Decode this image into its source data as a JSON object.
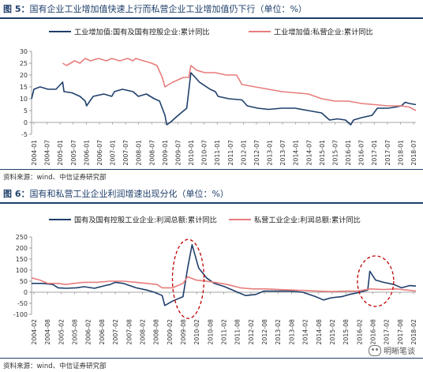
{
  "figure5": {
    "label": "图 5：",
    "title": "国有企业工业增加值快速上行而私营企业工业增加值仍下行（单位：%）",
    "source": "资料来源：wind、中信证券研究部"
  },
  "figure6": {
    "label": "图 6：",
    "title": "国有和私营工业企业利润增速出现分化（单位：%）",
    "source": "资料来源：wind、中信证券研究部"
  },
  "watermark": "明晰笔谈",
  "colors": {
    "series_state": "#1f3f6b",
    "series_private": "#e87d7d",
    "ellipse": "#c00000",
    "axis": "#888888"
  },
  "chart_data": [
    {
      "type": "line",
      "title": "",
      "ylim": [
        -5,
        30
      ],
      "yticks": [
        -5,
        0,
        5,
        10,
        15,
        20,
        25,
        30
      ],
      "xlim": [
        2004.08,
        2018.55
      ],
      "tick_labels": [
        "2004-01",
        "2004-07",
        "2005-01",
        "2005-07",
        "2006-01",
        "2006-07",
        "2007-01",
        "2007-07",
        "2008-01",
        "2008-07",
        "2009-01",
        "2009-07",
        "2010-01",
        "2010-07",
        "2011-01",
        "2011-07",
        "2012-01",
        "2012-07",
        "2013-01",
        "2013-07",
        "2014-01",
        "2014-07",
        "2015-01",
        "2015-07",
        "2016-01",
        "2016-07",
        "2017-01",
        "2017-07",
        "2018-01",
        "2018-07"
      ],
      "legend_placement": "top",
      "series": [
        {
          "name": "工业增加值:国有及国有控股企业:累计同比",
          "color": "#1f3f6b",
          "points": [
            [
              2004.08,
              10
            ],
            [
              2004.17,
              14
            ],
            [
              2004.4,
              15
            ],
            [
              2004.7,
              14
            ],
            [
              2005.0,
              14
            ],
            [
              2005.25,
              17
            ],
            [
              2005.3,
              13
            ],
            [
              2005.6,
              12.5
            ],
            [
              2005.9,
              11
            ],
            [
              2006.1,
              9
            ],
            [
              2006.15,
              7
            ],
            [
              2006.4,
              11
            ],
            [
              2006.8,
              12
            ],
            [
              2007.1,
              11
            ],
            [
              2007.2,
              13
            ],
            [
              2007.5,
              14
            ],
            [
              2007.9,
              13
            ],
            [
              2008.1,
              11
            ],
            [
              2008.4,
              12
            ],
            [
              2008.7,
              10
            ],
            [
              2008.9,
              9
            ],
            [
              2009.1,
              3
            ],
            [
              2009.17,
              -1
            ],
            [
              2009.3,
              0
            ],
            [
              2009.6,
              3
            ],
            [
              2009.92,
              6
            ],
            [
              2010.08,
              21
            ],
            [
              2010.4,
              17
            ],
            [
              2010.8,
              14
            ],
            [
              2011.0,
              13
            ],
            [
              2011.1,
              11
            ],
            [
              2011.5,
              10
            ],
            [
              2012.0,
              9.5
            ],
            [
              2012.2,
              7
            ],
            [
              2012.6,
              6
            ],
            [
              2013.0,
              5.5
            ],
            [
              2013.5,
              6
            ],
            [
              2014.0,
              6
            ],
            [
              2014.5,
              5
            ],
            [
              2015.0,
              4
            ],
            [
              2015.3,
              1
            ],
            [
              2015.6,
              1.5
            ],
            [
              2015.9,
              1
            ],
            [
              2016.1,
              -1
            ],
            [
              2016.2,
              1
            ],
            [
              2016.5,
              2
            ],
            [
              2016.9,
              3
            ],
            [
              2017.1,
              6
            ],
            [
              2017.5,
              6
            ],
            [
              2017.8,
              6.5
            ],
            [
              2018.0,
              7
            ],
            [
              2018.15,
              8.5
            ],
            [
              2018.3,
              8
            ],
            [
              2018.55,
              7.5
            ]
          ]
        },
        {
          "name": "工业增加值:私营企业:累计同比",
          "color": "#e87d7d",
          "points": [
            [
              2005.25,
              25
            ],
            [
              2005.4,
              24
            ],
            [
              2005.7,
              26
            ],
            [
              2005.9,
              25
            ],
            [
              2006.1,
              27
            ],
            [
              2006.3,
              26
            ],
            [
              2006.6,
              27
            ],
            [
              2006.9,
              26
            ],
            [
              2007.1,
              27
            ],
            [
              2007.4,
              26
            ],
            [
              2007.7,
              27
            ],
            [
              2007.9,
              26
            ],
            [
              2008.0,
              27
            ],
            [
              2008.3,
              26
            ],
            [
              2008.6,
              25
            ],
            [
              2008.8,
              24
            ],
            [
              2009.0,
              19
            ],
            [
              2009.1,
              15
            ],
            [
              2009.4,
              17
            ],
            [
              2009.8,
              19
            ],
            [
              2010.0,
              19
            ],
            [
              2010.08,
              24
            ],
            [
              2010.3,
              22
            ],
            [
              2010.6,
              21
            ],
            [
              2011.0,
              21
            ],
            [
              2011.4,
              20
            ],
            [
              2011.8,
              20
            ],
            [
              2012.0,
              16
            ],
            [
              2012.5,
              15
            ],
            [
              2013.0,
              14
            ],
            [
              2013.5,
              13
            ],
            [
              2014.0,
              12.5
            ],
            [
              2014.5,
              12
            ],
            [
              2015.0,
              10
            ],
            [
              2015.5,
              9
            ],
            [
              2016.0,
              9
            ],
            [
              2016.5,
              8
            ],
            [
              2017.0,
              7.5
            ],
            [
              2017.5,
              7
            ],
            [
              2018.0,
              7
            ],
            [
              2018.3,
              6.5
            ],
            [
              2018.55,
              5
            ]
          ]
        }
      ]
    },
    {
      "type": "line",
      "title": "",
      "ylim": [
        -100,
        250
      ],
      "yticks": [
        -100,
        -50,
        0,
        50,
        100,
        150,
        200,
        250
      ],
      "xlim": [
        2004.08,
        2018.85
      ],
      "tick_labels": [
        "2004-02",
        "2004-08",
        "2005-02",
        "2005-08",
        "2006-02",
        "2006-08",
        "2007-02",
        "2007-08",
        "2008-02",
        "2008-08",
        "2009-02",
        "2009-08",
        "2010-02",
        "2010-08",
        "2011-02",
        "2011-08",
        "2012-02",
        "2012-08",
        "2013-02",
        "2013-08",
        "2014-02",
        "2014-08",
        "2015-02",
        "2015-08",
        "2016-02",
        "2016-08",
        "2017-02",
        "2017-08",
        "2018-02"
      ],
      "legend_placement": "top",
      "series": [
        {
          "name": "国有及国有控股工业企业:利润总额:累计同比",
          "color": "#1f3f6b",
          "points": [
            [
              2004.08,
              40
            ],
            [
              2004.5,
              40
            ],
            [
              2004.9,
              35
            ],
            [
              2005.1,
              20
            ],
            [
              2005.4,
              18
            ],
            [
              2005.8,
              20
            ],
            [
              2006.1,
              25
            ],
            [
              2006.5,
              18
            ],
            [
              2006.9,
              30
            ],
            [
              2007.1,
              35
            ],
            [
              2007.3,
              45
            ],
            [
              2007.6,
              40
            ],
            [
              2008.1,
              20
            ],
            [
              2008.5,
              10
            ],
            [
              2008.8,
              0
            ],
            [
              2009.1,
              -15
            ],
            [
              2009.2,
              -60
            ],
            [
              2009.5,
              -40
            ],
            [
              2009.9,
              -20
            ],
            [
              2010.08,
              110
            ],
            [
              2010.25,
              215
            ],
            [
              2010.5,
              110
            ],
            [
              2010.8,
              65
            ],
            [
              2011.1,
              40
            ],
            [
              2011.5,
              25
            ],
            [
              2012.0,
              0
            ],
            [
              2012.3,
              -15
            ],
            [
              2012.7,
              -10
            ],
            [
              2013.0,
              5
            ],
            [
              2013.5,
              5
            ],
            [
              2014.0,
              5
            ],
            [
              2014.5,
              0
            ],
            [
              2015.0,
              -20
            ],
            [
              2015.3,
              -35
            ],
            [
              2015.6,
              -25
            ],
            [
              2016.0,
              -20
            ],
            [
              2016.3,
              -10
            ],
            [
              2016.7,
              0
            ],
            [
              2017.0,
              10
            ],
            [
              2017.08,
              95
            ],
            [
              2017.3,
              55
            ],
            [
              2017.6,
              45
            ],
            [
              2018.0,
              35
            ],
            [
              2018.3,
              20
            ],
            [
              2018.6,
              30
            ],
            [
              2018.85,
              28
            ]
          ]
        },
        {
          "name": "私营工业企业:利润总额:累计同比",
          "color": "#e87d7d",
          "points": [
            [
              2004.08,
              65
            ],
            [
              2004.4,
              55
            ],
            [
              2004.7,
              40
            ],
            [
              2005.1,
              40
            ],
            [
              2005.4,
              35
            ],
            [
              2005.7,
              40
            ],
            [
              2006.1,
              45
            ],
            [
              2006.6,
              45
            ],
            [
              2007.1,
              50
            ],
            [
              2007.6,
              50
            ],
            [
              2008.1,
              45
            ],
            [
              2008.5,
              40
            ],
            [
              2008.9,
              35
            ],
            [
              2009.1,
              20
            ],
            [
              2009.5,
              20
            ],
            [
              2009.9,
              40
            ],
            [
              2010.08,
              70
            ],
            [
              2010.4,
              55
            ],
            [
              2010.8,
              50
            ],
            [
              2011.1,
              45
            ],
            [
              2011.6,
              35
            ],
            [
              2012.1,
              20
            ],
            [
              2012.6,
              15
            ],
            [
              2013.1,
              15
            ],
            [
              2013.6,
              12
            ],
            [
              2014.1,
              10
            ],
            [
              2014.6,
              8
            ],
            [
              2015.1,
              5
            ],
            [
              2015.6,
              3
            ],
            [
              2016.1,
              5
            ],
            [
              2016.6,
              5
            ],
            [
              2017.1,
              15
            ],
            [
              2017.6,
              12
            ],
            [
              2018.1,
              15
            ],
            [
              2018.5,
              10
            ],
            [
              2018.85,
              5
            ]
          ]
        }
      ]
    }
  ]
}
